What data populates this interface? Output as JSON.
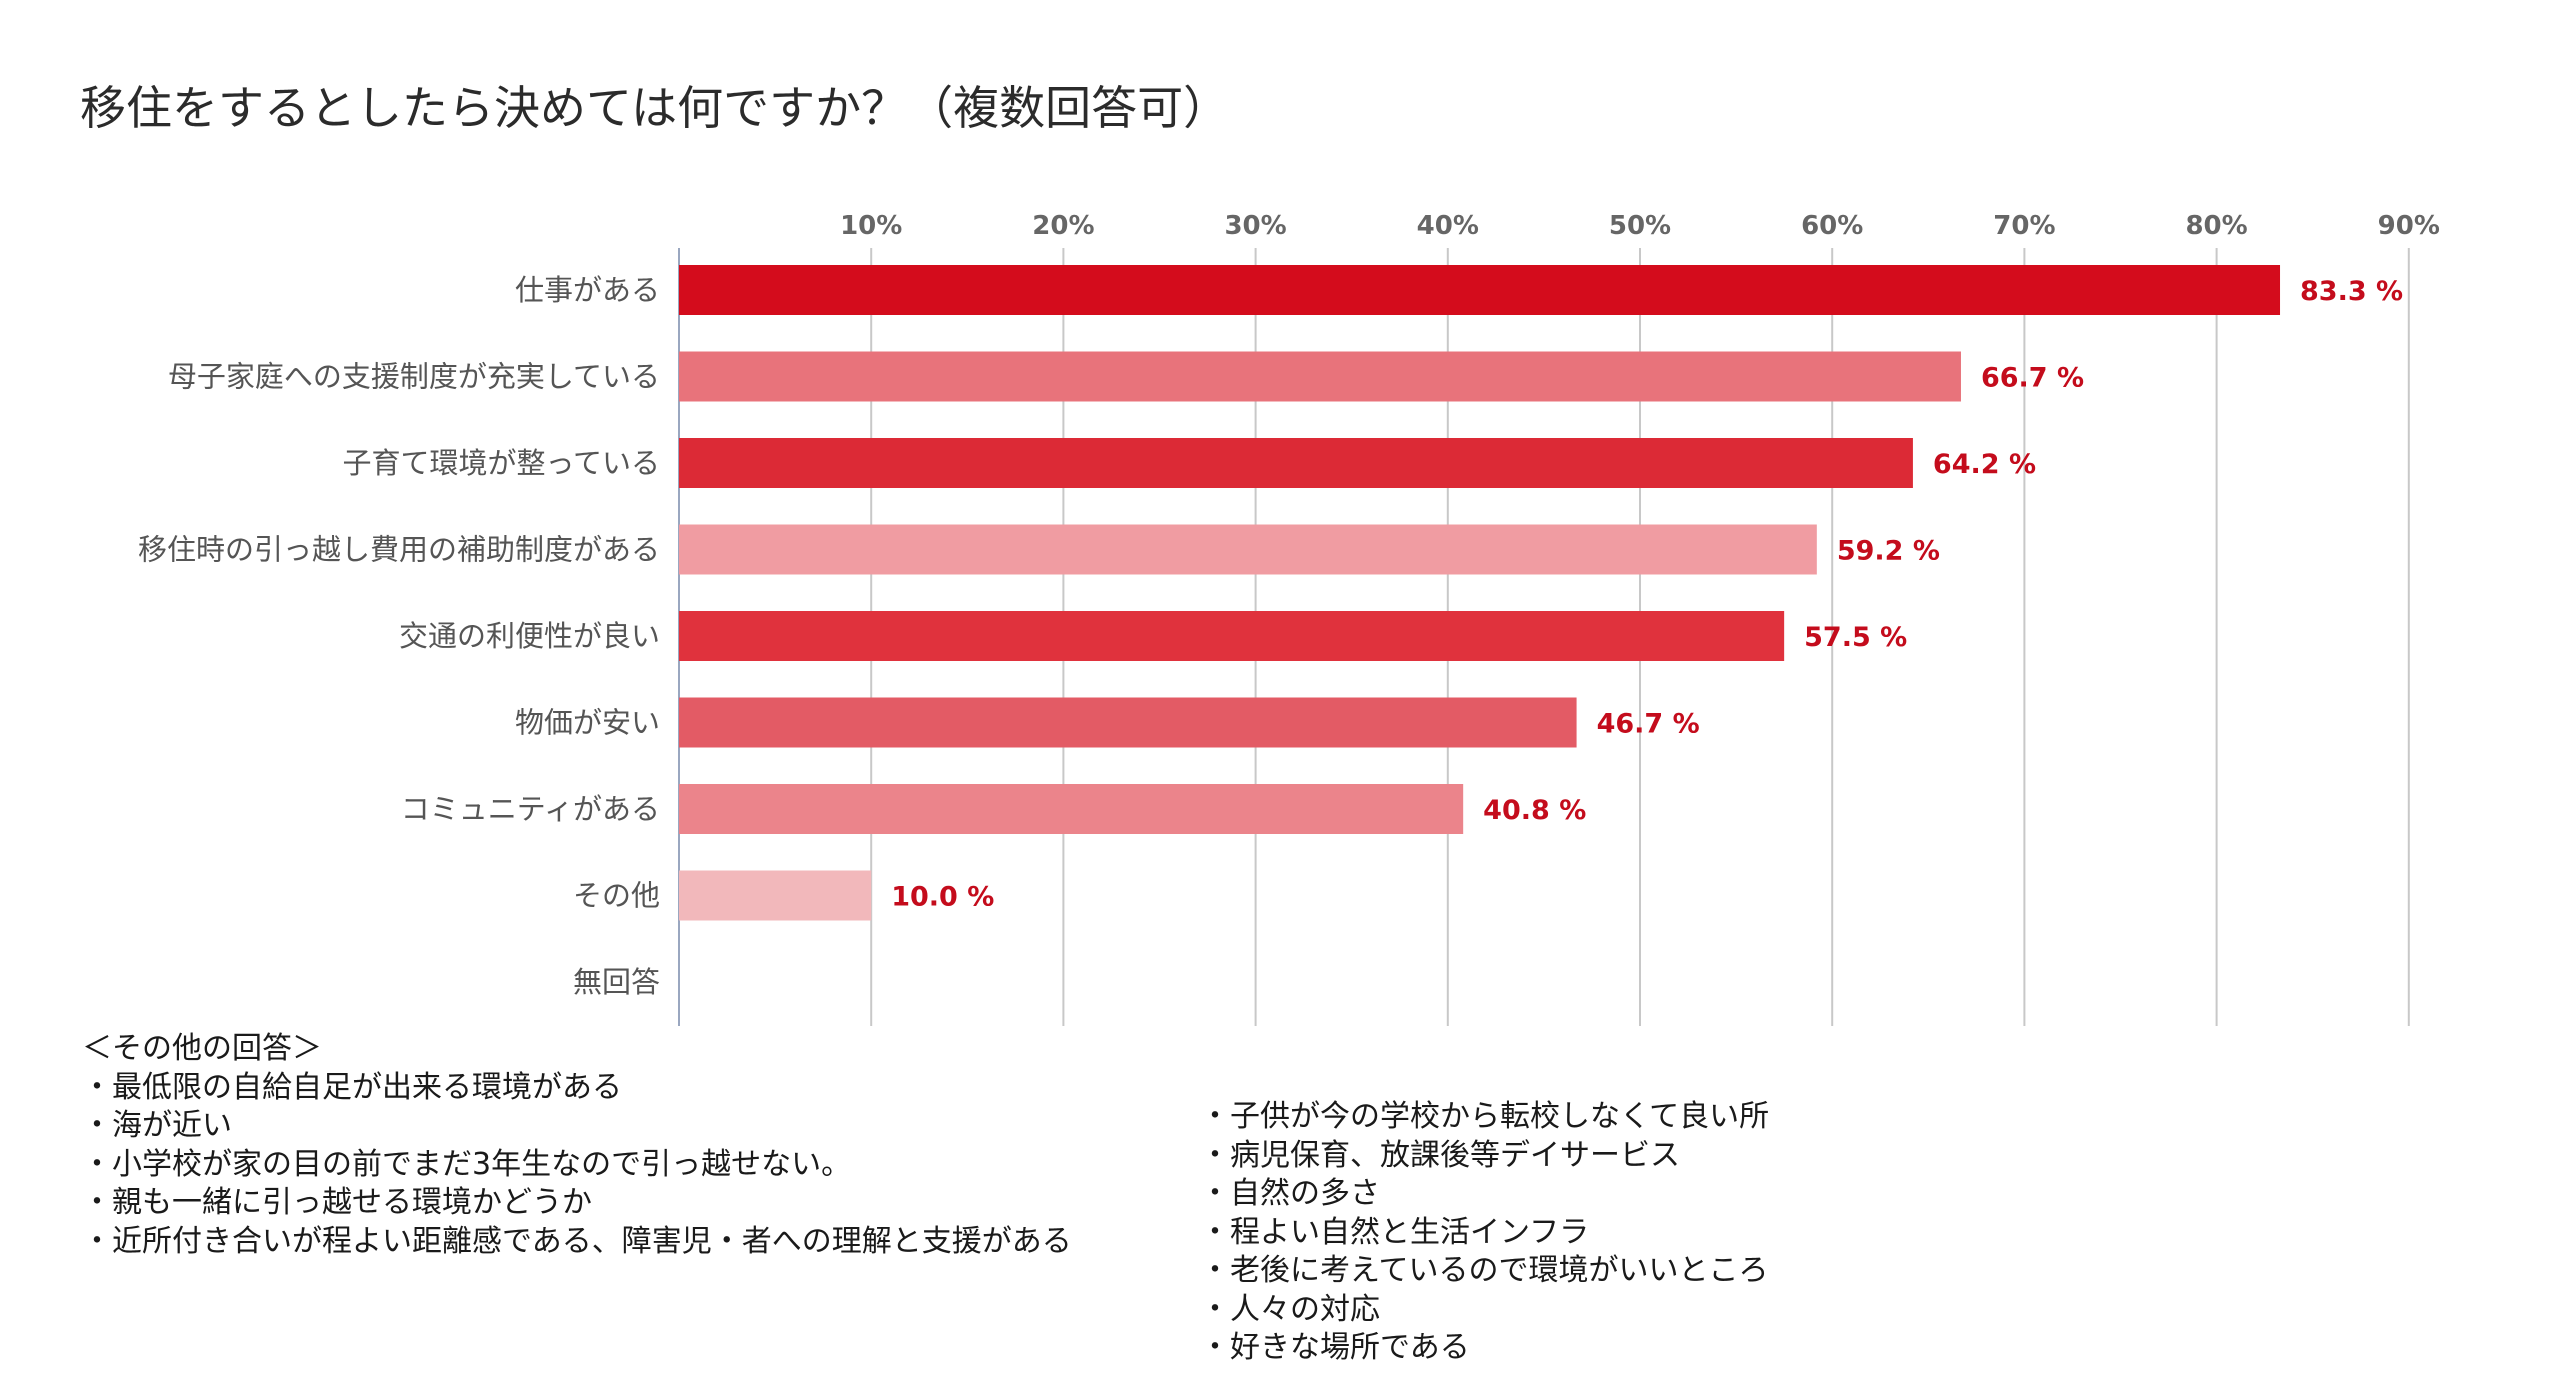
{
  "title": "移住をするとしたら決めては何ですか？（複数回答可）",
  "chart_data": {
    "type": "bar",
    "orientation": "horizontal",
    "title": "移住をするとしたら決めては何ですか？（複数回答可）",
    "categories": [
      "仕事がある",
      "母子家庭への支援制度が充実している",
      "子育て環境が整っている",
      "移住時の引っ越し費用の補助制度がある",
      "交通の利便性が良い",
      "物価が安い",
      "コミュニティがある",
      "その他",
      "無回答"
    ],
    "values": [
      83.3,
      66.7,
      64.2,
      59.2,
      57.5,
      46.7,
      40.8,
      10.0,
      0
    ],
    "value_labels": [
      "83.3 %",
      "66.7 %",
      "64.2 %",
      "59.2 %",
      "57.5 %",
      "46.7 %",
      "40.8 %",
      "10.0 %",
      ""
    ],
    "bar_colors": [
      "#d40c1c",
      "#e8737b",
      "#dc2a36",
      "#f09ca2",
      "#e0323d",
      "#e35b65",
      "#eb848b",
      "#f2b8bb",
      "#f2b8bb"
    ],
    "xlim": [
      0,
      90
    ],
    "xticks": [
      10,
      20,
      30,
      40,
      50,
      60,
      70,
      80,
      90
    ],
    "xtick_labels": [
      "10%",
      "20%",
      "30%",
      "40%",
      "50%",
      "60%",
      "70%",
      "80%",
      "90%"
    ],
    "xaxis_position": "top",
    "grid": true,
    "grid_color": "#c8c8c8",
    "value_label_color": "#c40c1c"
  },
  "notes": {
    "left": [
      "＜その他の回答＞",
      "・最低限の自給自足が出来る環境がある",
      "・海が近い",
      "・小学校が家の目の前でまだ3年生なので引っ越せない。",
      " ・親も一緒に引っ越せる環境かどうか",
      "・近所付き合いが程よい距離感である、障害児・者への理解と支援がある"
    ],
    "right": [
      "・子供が今の学校から転校しなくて良い所",
      "・病児保育、放課後等デイサービス",
      "・自然の多さ",
      "・程よい自然と生活インフラ",
      " ・老後に考えているので環境がいいところ",
      "・人々の対応",
      "・好きな場所である"
    ]
  }
}
